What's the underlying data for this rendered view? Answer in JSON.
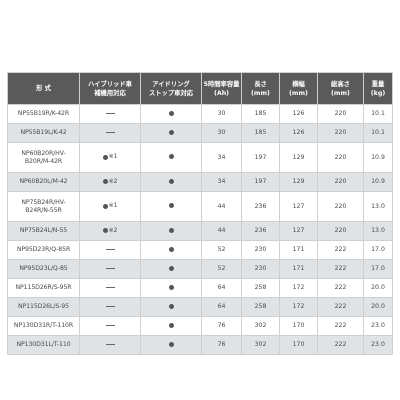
{
  "headers": [
    "形 式",
    "ハイブリッド車\n補機用対応",
    "アイドリング\nストップ車対応",
    "5時間率容量\n(Ah)",
    "長さ\n(mm)",
    "横幅\n(mm)",
    "総高さ\n(mm)",
    "重量\n(kg)"
  ],
  "rows": [
    {
      "model": "NP55B19R/K-42R",
      "hybrid": "dash",
      "hybrid_note": "",
      "idle": "dot",
      "ah": "30",
      "length": "185",
      "width": "126",
      "height": "220",
      "weight": "10.1"
    },
    {
      "model": "NP55B19L/K-42",
      "hybrid": "dash",
      "hybrid_note": "",
      "idle": "dot",
      "ah": "30",
      "length": "185",
      "width": "126",
      "height": "220",
      "weight": "10.1"
    },
    {
      "model": "NP60B20R/HV-\nB20R/M-42R",
      "hybrid": "dot",
      "hybrid_note": "※1",
      "idle": "dot",
      "ah": "34",
      "length": "197",
      "width": "129",
      "height": "220",
      "weight": "10.9"
    },
    {
      "model": "NP60B20L/M-42",
      "hybrid": "dot",
      "hybrid_note": "※2",
      "idle": "dot",
      "ah": "34",
      "length": "197",
      "width": "129",
      "height": "220",
      "weight": "10.9"
    },
    {
      "model": "NP75B24R/HV-\nB24R/N-55R",
      "hybrid": "dot",
      "hybrid_note": "※1",
      "idle": "dot",
      "ah": "44",
      "length": "236",
      "width": "127",
      "height": "220",
      "weight": "13.0"
    },
    {
      "model": "NP75B24L/N-55",
      "hybrid": "dot",
      "hybrid_note": "※2",
      "idle": "dot",
      "ah": "44",
      "length": "236",
      "width": "127",
      "height": "220",
      "weight": "13.0"
    },
    {
      "model": "NP95D23R/Q-85R",
      "hybrid": "dash",
      "hybrid_note": "",
      "idle": "dot",
      "ah": "52",
      "length": "230",
      "width": "171",
      "height": "222",
      "weight": "17.0"
    },
    {
      "model": "NP95D23L/Q-85",
      "hybrid": "dash",
      "hybrid_note": "",
      "idle": "dot",
      "ah": "52",
      "length": "230",
      "width": "171",
      "height": "222",
      "weight": "17.0"
    },
    {
      "model": "NP115D26R/S-95R",
      "hybrid": "dash",
      "hybrid_note": "",
      "idle": "dot",
      "ah": "64",
      "length": "258",
      "width": "172",
      "height": "222",
      "weight": "20.0"
    },
    {
      "model": "NP115D26L/S-95",
      "hybrid": "dash",
      "hybrid_note": "",
      "idle": "dot",
      "ah": "64",
      "length": "258",
      "width": "172",
      "height": "222",
      "weight": "20.0"
    },
    {
      "model": "NP130D31R/T-110R",
      "hybrid": "dash",
      "hybrid_note": "",
      "idle": "dot",
      "ah": "76",
      "length": "302",
      "width": "170",
      "height": "222",
      "weight": "23.0"
    },
    {
      "model": "NP130D31L/T-110",
      "hybrid": "dash",
      "hybrid_note": "",
      "idle": "dot",
      "ah": "76",
      "length": "302",
      "width": "170",
      "height": "222",
      "weight": "23.0"
    }
  ]
}
